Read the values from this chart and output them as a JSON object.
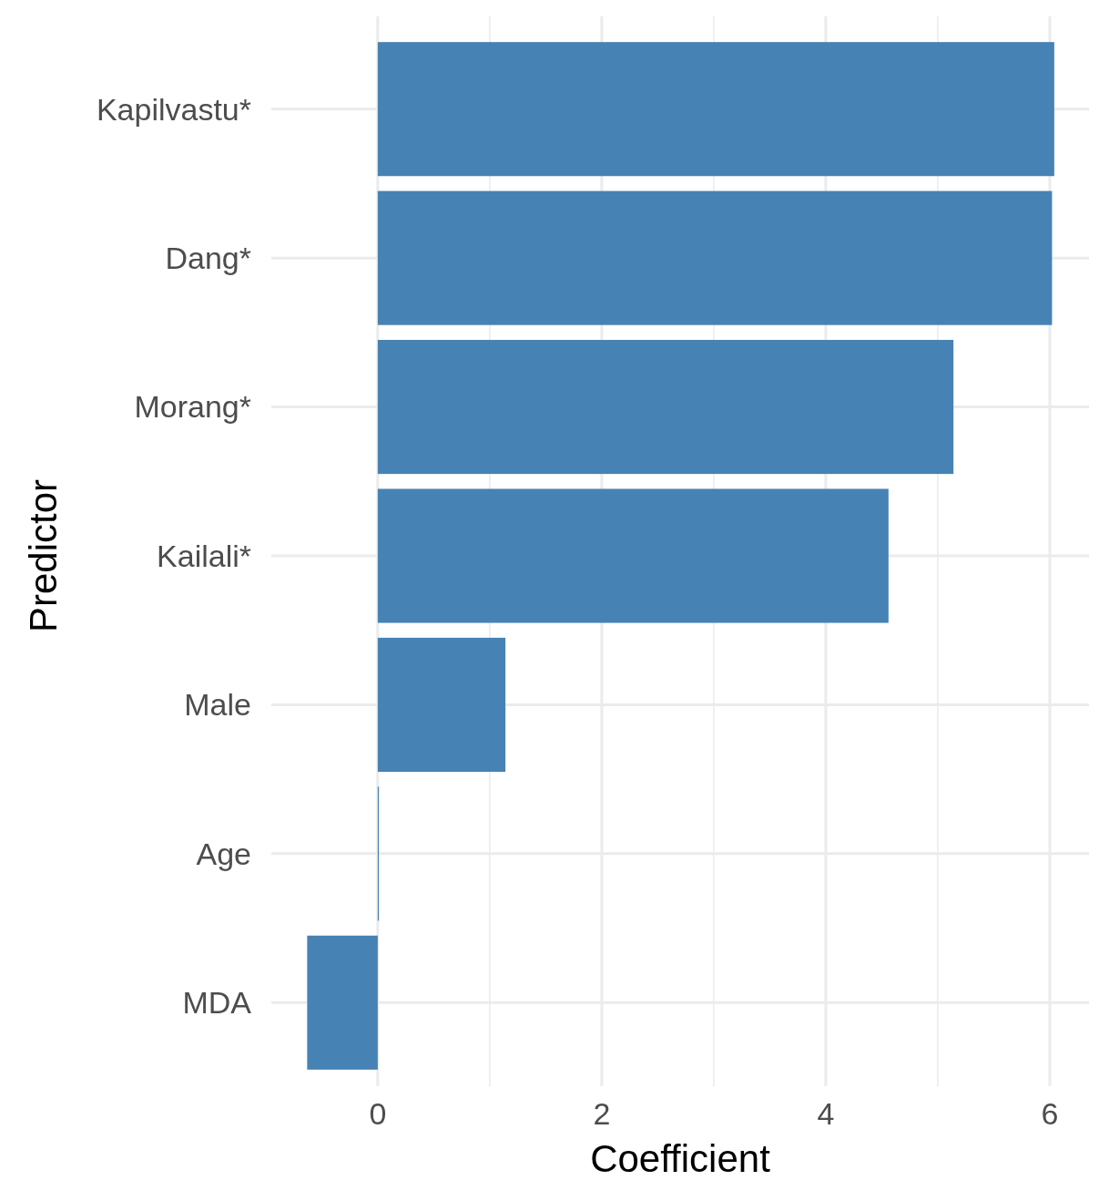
{
  "chart_data": {
    "type": "bar",
    "orientation": "horizontal",
    "xlabel": "Coefficient",
    "ylabel": "Predictor",
    "categories": [
      "Kapilvastu*",
      "Dang*",
      "Morang*",
      "Kailali*",
      "Male",
      "Age",
      "MDA"
    ],
    "values": [
      6.04,
      6.02,
      5.14,
      4.56,
      1.14,
      0.01,
      -0.63
    ],
    "color": "#4682b4",
    "xlim": [
      -0.95,
      6.35
    ],
    "xticks": [
      0,
      {
        "value": 1,
        "label": null
      },
      2,
      {
        "value": 3,
        "label": null
      },
      4,
      {
        "value": 5,
        "label": null
      },
      6
    ],
    "grid": true
  }
}
